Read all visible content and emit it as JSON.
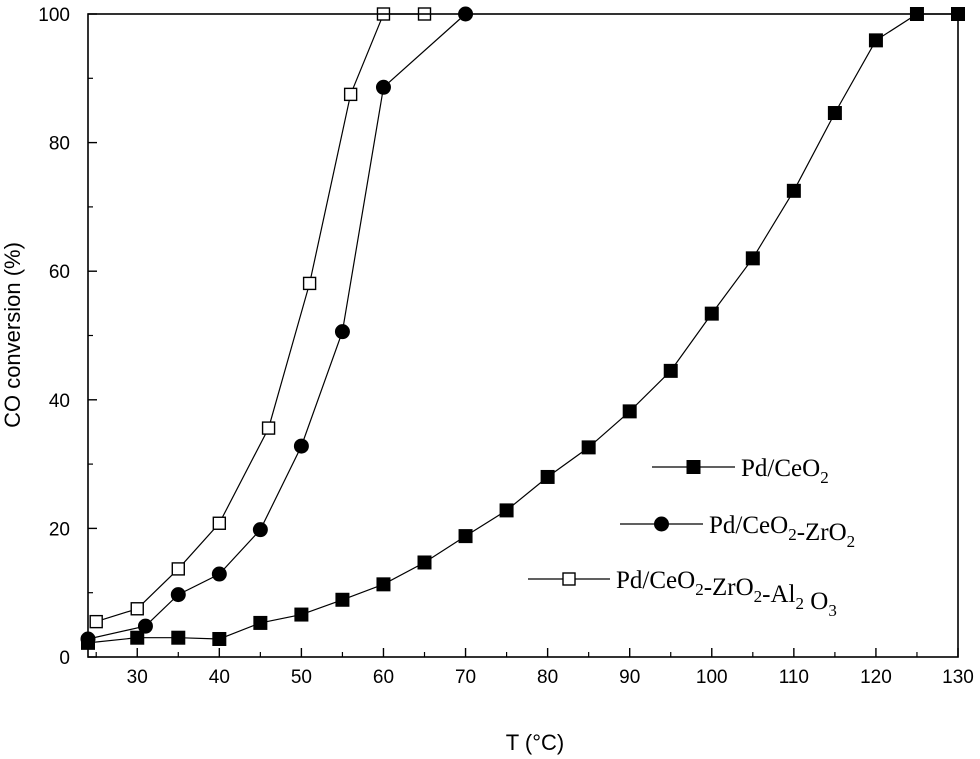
{
  "chart_data": {
    "type": "line",
    "xlabel": "T (°C)",
    "ylabel": "CO conversion (%)",
    "xlim": [
      24,
      130
    ],
    "ylim": [
      0,
      100
    ],
    "xticks": [
      30,
      40,
      50,
      60,
      70,
      80,
      90,
      100,
      110,
      120,
      130
    ],
    "yticks": [
      0,
      20,
      40,
      60,
      80,
      100
    ],
    "grid": false,
    "legend_position": "bottom-right",
    "series": [
      {
        "name": "Pd/CeO2",
        "legend_parts": [
          [
            "Pd/CeO",
            ""
          ],
          [
            "2",
            "sub"
          ]
        ],
        "marker": "filled-square",
        "x": [
          24,
          30,
          35,
          40,
          45,
          50,
          55,
          60,
          65,
          70,
          75,
          80,
          85,
          90,
          95,
          100,
          105,
          110,
          115,
          120,
          125,
          130
        ],
        "y": [
          2.2,
          3.0,
          3.0,
          2.8,
          5.3,
          6.6,
          8.9,
          11.3,
          14.7,
          18.8,
          22.8,
          28.0,
          32.6,
          38.2,
          44.5,
          53.4,
          62.0,
          72.5,
          84.6,
          95.9,
          100,
          100
        ]
      },
      {
        "name": "Pd/CeO2-ZrO2",
        "legend_parts": [
          [
            "Pd/CeO",
            ""
          ],
          [
            "2",
            "sub"
          ],
          [
            "-ZrO",
            ""
          ],
          [
            "2",
            "sub"
          ]
        ],
        "marker": "filled-circle",
        "x": [
          24,
          31,
          35,
          40,
          45,
          50,
          55,
          60,
          70
        ],
        "y": [
          2.8,
          4.8,
          9.7,
          12.9,
          19.8,
          32.8,
          50.6,
          88.6,
          100
        ]
      },
      {
        "name": "Pd/CeO2-ZrO2-Al2O3",
        "legend_parts": [
          [
            "Pd/CeO",
            ""
          ],
          [
            "2",
            "sub"
          ],
          [
            "-ZrO",
            ""
          ],
          [
            "2",
            "sub"
          ],
          [
            "-Al",
            ""
          ],
          [
            "2",
            "sub"
          ],
          [
            " O",
            ""
          ],
          [
            "3",
            "sub"
          ]
        ],
        "marker": "open-square",
        "x": [
          25,
          30,
          35,
          40,
          46,
          51,
          56,
          60,
          65
        ],
        "y": [
          5.5,
          7.5,
          13.7,
          20.8,
          35.6,
          58.1,
          87.5,
          100,
          100
        ]
      }
    ]
  }
}
